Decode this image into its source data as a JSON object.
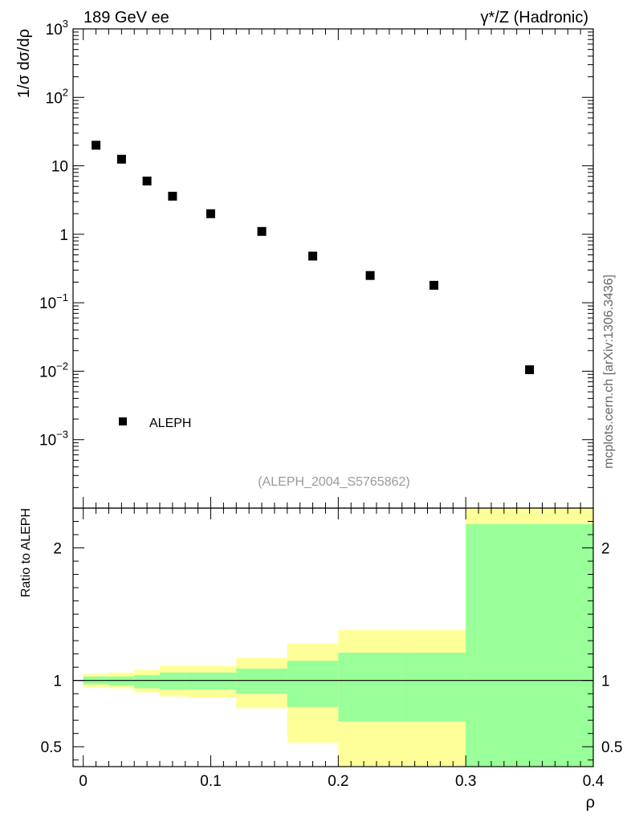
{
  "header": {
    "left": "189 GeV ee",
    "right": "γ*/Z (Hadronic)"
  },
  "side_label": "mcplots.cern.ch [arXiv:1306.3436]",
  "analysis_label": "(ALEPH_2004_S5765862)",
  "chart_data": [
    {
      "type": "scatter",
      "panel": "main",
      "ylabel": "1/σ dσ/dρ",
      "yscale": "log",
      "ylim": [
        0.0001,
        1000
      ],
      "xlim": [
        -0.008,
        0.4
      ],
      "y_tick_labels": [
        {
          "value": 1000,
          "base": "10",
          "exp": "3"
        },
        {
          "value": 100,
          "base": "10",
          "exp": "2"
        },
        {
          "value": 10,
          "base": "10",
          "exp": ""
        },
        {
          "value": 1,
          "base": "1",
          "exp": ""
        },
        {
          "value": 0.1,
          "base": "10",
          "exp": "−1"
        },
        {
          "value": 0.01,
          "base": "10",
          "exp": "−2"
        },
        {
          "value": 0.001,
          "base": "10",
          "exp": "−3"
        }
      ],
      "legend": {
        "label": "ALEPH",
        "position": "bottom-left"
      },
      "series": [
        {
          "name": "ALEPH",
          "color": "#000000",
          "x": [
            0.01,
            0.03,
            0.05,
            0.07,
            0.1,
            0.14,
            0.18,
            0.225,
            0.275,
            0.35
          ],
          "y": [
            20,
            12.5,
            6.0,
            3.6,
            2.0,
            1.1,
            0.48,
            0.25,
            0.18,
            0.0105
          ]
        }
      ]
    },
    {
      "type": "area",
      "panel": "ratio",
      "ylabel": "Ratio to ALEPH",
      "xlabel": "ρ",
      "ylim": [
        0.35,
        2.3
      ],
      "xlim": [
        -0.008,
        0.4
      ],
      "x_ticks": [
        0,
        0.1,
        0.2,
        0.3,
        0.4
      ],
      "x_tick_labels": [
        "0",
        "0.1",
        "0.2",
        "0.3",
        "0.4"
      ],
      "y_ticks": [
        0.5,
        1,
        2
      ],
      "y_tick_labels": [
        "0.5",
        "1",
        "2"
      ],
      "bin_edges": [
        0,
        0.02,
        0.04,
        0.06,
        0.08,
        0.12,
        0.16,
        0.2,
        0.25,
        0.3,
        0.4
      ],
      "bands": [
        {
          "color": "#ffff99",
          "lower": [
            0.95,
            0.94,
            0.91,
            0.88,
            0.87,
            0.79,
            0.53,
            0.35,
            0.35,
            0.35
          ],
          "upper": [
            1.05,
            1.06,
            1.08,
            1.11,
            1.11,
            1.17,
            1.28,
            1.38,
            1.38,
            2.3
          ]
        },
        {
          "color": "#99ff99",
          "lower": [
            0.97,
            0.96,
            0.94,
            0.93,
            0.93,
            0.9,
            0.8,
            0.69,
            0.69,
            0.35
          ],
          "upper": [
            1.03,
            1.03,
            1.04,
            1.06,
            1.06,
            1.09,
            1.15,
            1.21,
            1.21,
            2.18
          ]
        }
      ],
      "reference_line": 1
    }
  ]
}
